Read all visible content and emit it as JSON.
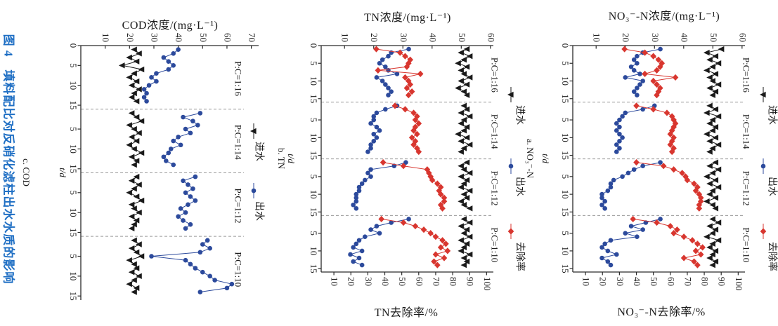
{
  "figure": {
    "caption": "图 4　填料配比对反硝化滤柱出水水质的影响",
    "caption_color": "#1f6fc4"
  },
  "colors": {
    "influent": "#1a1a1a",
    "effluent": "#2c4a9c",
    "removal": "#d8362f",
    "separator": "#999999",
    "axis": "#2a2a2a"
  },
  "legend": {
    "influent": "进水",
    "effluent": "出水",
    "removal": "去除率"
  },
  "phases": {
    "labels": [
      "P:C=1:16",
      "P:C=1:14",
      "P:C=1:12",
      "P:C=1:10"
    ],
    "separator_days": [
      16,
      32,
      48
    ],
    "duration_days": 16,
    "start_days": [
      0,
      16,
      32,
      48
    ]
  },
  "time_axis": {
    "label": "t/d",
    "tick_days": [
      0,
      5,
      10,
      15,
      21,
      26,
      31,
      37,
      42,
      47,
      53,
      58,
      63
    ],
    "tick_labels": [
      "0",
      "5",
      "10",
      "15",
      "5",
      "10",
      "15",
      "5",
      "10",
      "15",
      "5",
      "10",
      "15"
    ]
  },
  "days_in_phase": [
    1,
    2,
    3,
    4,
    5,
    6,
    7,
    8,
    9,
    10,
    11,
    12,
    13,
    14
  ],
  "chart_data": [
    {
      "id": "c",
      "type": "line",
      "panel_label": "c. COD",
      "title": "COD浓度/(mg·L⁻¹)",
      "conc_axis": {
        "ticks": [
          10,
          20,
          30,
          40,
          50,
          60,
          70
        ],
        "range": [
          0,
          73
        ]
      },
      "removal_axis": null,
      "removal_title": "",
      "series": [
        {
          "key": "influent",
          "label": "进水",
          "marker": "triangle",
          "axis": "conc",
          "phases": [
            [
              22,
              24,
              20,
              23,
              17,
              25,
              22,
              20,
              23,
              21,
              24,
              22,
              21,
              23
            ],
            [
              21,
              23,
              25,
              20,
              22,
              24,
              21,
              23,
              20,
              22,
              25,
              21,
              23,
              22
            ],
            [
              23,
              21,
              24,
              22,
              20,
              23,
              25,
              21,
              22,
              24,
              21,
              23,
              22,
              21
            ],
            [
              22,
              24,
              21,
              23,
              25,
              20,
              22,
              23,
              21,
              24,
              22,
              20,
              23,
              22
            ]
          ]
        },
        {
          "key": "effluent",
          "label": "出水",
          "marker": "circle",
          "axis": "conc",
          "phases": [
            [
              40,
              38,
              34,
              36,
              38,
              36,
              31,
              29,
              31,
              28,
              26,
              27,
              26,
              27
            ],
            [
              49,
              42,
              46,
              48,
              43,
              45,
              40,
              38,
              41,
              37,
              36,
              34,
              35,
              38
            ],
            [
              47,
              42,
              44,
              46,
              43,
              45,
              47,
              44,
              41,
              43,
              40,
              42,
              45,
              43
            ],
            [
              52,
              50,
              53,
              49,
              29,
              43,
              45,
              47,
              50,
              53,
              55,
              62,
              60,
              49
            ]
          ]
        }
      ]
    },
    {
      "id": "b",
      "type": "line",
      "panel_label": "b. TN",
      "title": "TN浓度/(mg·L⁻¹)",
      "conc_axis": {
        "ticks": [
          10,
          20,
          30,
          40,
          50,
          60
        ],
        "range": [
          2,
          61
        ]
      },
      "removal_axis": {
        "ticks": [
          10,
          20,
          30,
          40,
          50,
          60,
          70,
          80,
          90,
          100
        ],
        "range": [
          2.5,
          104
        ]
      },
      "removal_title": "TN去除率/%",
      "series": [
        {
          "key": "influent",
          "label": "进水",
          "marker": "triangle",
          "axis": "conc",
          "phases": [
            [
              52,
              50,
              53,
              51,
              49,
              52,
              50,
              51,
              53,
              50,
              52,
              49,
              51,
              52
            ],
            [
              51,
              52,
              50,
              53,
              51,
              50,
              52,
              51,
              49,
              52,
              50,
              53,
              51,
              50
            ],
            [
              52,
              50,
              51,
              53,
              50,
              52,
              51,
              50,
              53,
              51,
              52,
              50,
              51,
              53
            ],
            [
              51,
              53,
              50,
              52,
              51,
              53,
              50,
              52,
              51,
              50,
              53,
              51,
              52,
              51
            ]
          ]
        },
        {
          "key": "effluent",
          "label": "出水",
          "marker": "circle",
          "axis": "conc",
          "phases": [
            [
              32,
              26,
              25,
              23,
              22,
              24,
              25,
              28,
              21,
              23,
              24,
              25,
              26,
              25
            ],
            [
              28,
              24,
              21,
              20,
              20,
              19,
              21,
              22,
              20,
              21,
              20,
              19,
              19,
              18
            ],
            [
              31,
              27,
              19,
              18,
              19,
              17,
              16,
              15,
              15,
              14,
              14,
              14,
              13,
              14
            ],
            [
              32,
              26,
              21,
              19,
              22,
              17,
              15,
              14,
              13,
              16,
              12,
              15,
              13,
              16
            ]
          ]
        },
        {
          "key": "removal",
          "label": "去除率",
          "marker": "diamond",
          "axis": "removal",
          "phases": [
            [
              35,
              49,
              52,
              55,
              54,
              53,
              36,
              61,
              52,
              54,
              55,
              53,
              56,
              54
            ],
            [
              46,
              52,
              57,
              59,
              58,
              60,
              58,
              57,
              59,
              56,
              58,
              57,
              59,
              60
            ],
            [
              39,
              51,
              65,
              66,
              67,
              68,
              71,
              73,
              72,
              73,
              75,
              75,
              73,
              74
            ],
            [
              38,
              51,
              58,
              63,
              67,
              70,
              74,
              76,
              73,
              77,
              70,
              75,
              69,
              71
            ]
          ]
        }
      ]
    },
    {
      "id": "a",
      "type": "line",
      "panel_label": "a. NO₃⁻-N",
      "title": "NO₃⁻-N浓度/(mg·L⁻¹)",
      "conc_axis": {
        "ticks": [
          10,
          20,
          30,
          40,
          50,
          60
        ],
        "range": [
          2,
          61
        ]
      },
      "removal_axis": {
        "ticks": [
          10,
          20,
          30,
          40,
          50,
          60,
          70,
          80,
          90,
          100
        ],
        "range": [
          2.5,
          104
        ]
      },
      "removal_title": "NO₃⁻-N去除率/%",
      "series": [
        {
          "key": "influent",
          "label": "进水",
          "marker": "triangle",
          "axis": "conc",
          "phases": [
            [
              53,
              48,
              51,
              49,
              52,
              50,
              48,
              51,
              49,
              50,
              52,
              49,
              51,
              50
            ],
            [
              49,
              51,
              48,
              52,
              50,
              49,
              51,
              50,
              48,
              51,
              49,
              52,
              50,
              49
            ],
            [
              51,
              49,
              52,
              50,
              48,
              51,
              49,
              52,
              50,
              49,
              51,
              48,
              50,
              51
            ],
            [
              50,
              52,
              49,
              51,
              50,
              48,
              52,
              50,
              49,
              51,
              50,
              49,
              51,
              50
            ]
          ]
        },
        {
          "key": "effluent",
          "label": "出水",
          "marker": "circle",
          "axis": "conc",
          "phases": [
            [
              32,
              26,
              24,
              23,
              24,
              22,
              23,
              25,
              20,
              26,
              25,
              24,
              23,
              24
            ],
            [
              30,
              26,
              20,
              19,
              18,
              17,
              18,
              17,
              18,
              19,
              18,
              17,
              18,
              17
            ],
            [
              32,
              26,
              23,
              21,
              19,
              16,
              15,
              15,
              14,
              12,
              12,
              13,
              12,
              13
            ],
            [
              32,
              27,
              22,
              26,
              20,
              24,
              15,
              13,
              12,
              14,
              17,
              12,
              14,
              15
            ]
          ]
        },
        {
          "key": "removal",
          "label": "去除率",
          "marker": "diamond",
          "axis": "removal",
          "phases": [
            [
              33,
              45,
              50,
              53,
              55,
              54,
              52,
              45,
              63,
              50,
              52,
              54,
              53,
              52
            ],
            [
              40,
              50,
              58,
              61,
              62,
              63,
              62,
              61,
              60,
              62,
              61,
              60,
              62,
              61
            ],
            [
              40,
              56,
              62,
              67,
              69,
              70,
              74,
              76,
              75,
              77,
              78,
              78,
              77,
              77
            ],
            [
              38,
              52,
              60,
              64,
              62,
              68,
              73,
              76,
              79,
              75,
              78,
              68,
              74,
              76
            ]
          ]
        }
      ]
    }
  ]
}
